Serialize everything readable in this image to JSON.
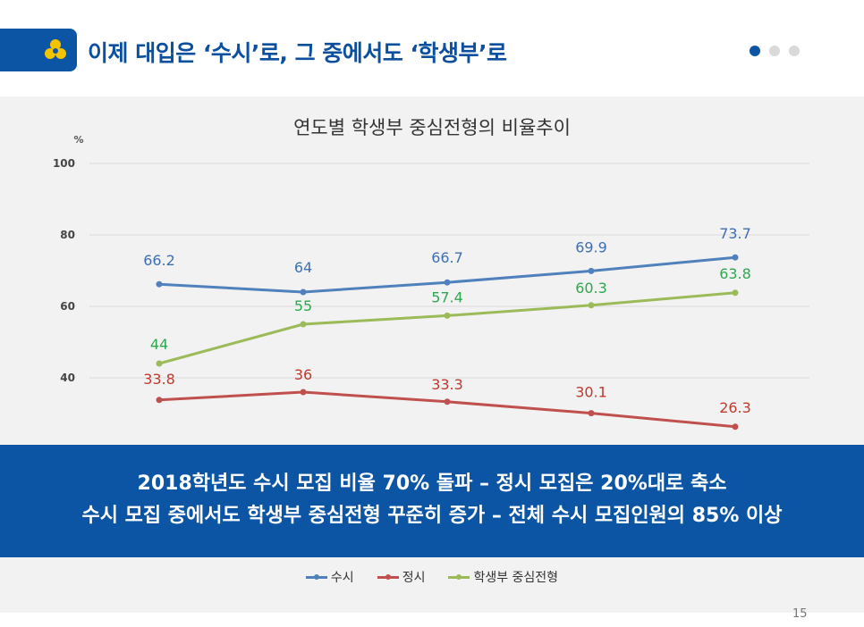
{
  "header": {
    "title": "이제 대입은 ‘수시’로, 그 중에서도 ‘학생부’로",
    "logo_icon": "yellow-trefoil-logo",
    "pagination_dots": [
      true,
      false,
      false
    ]
  },
  "chart_data": {
    "type": "line",
    "title": "연도별 학생부 중심전형의 비율추이",
    "ylabel": "%",
    "yticks": [
      40,
      60,
      80,
      100
    ],
    "ylim": [
      25,
      100
    ],
    "categories": [
      "",
      "",
      "",
      "",
      ""
    ],
    "grid": true,
    "legend_position": "bottom",
    "series": [
      {
        "name": "수시",
        "color": "#4f81bd",
        "label_color": "#3d6fb3",
        "values": [
          66.2,
          64,
          66.7,
          69.9,
          73.7
        ],
        "labels": [
          "66.2",
          "64",
          "66.7",
          "69.9",
          "73.7"
        ]
      },
      {
        "name": "정시",
        "color": "#c0504d",
        "label_color": "#c0392b",
        "values": [
          33.8,
          36,
          33.3,
          30.1,
          26.3
        ],
        "labels": [
          "33.8",
          "36",
          "33.3",
          "30.1",
          "26.3"
        ]
      },
      {
        "name": "학생부 중심전형",
        "color": "#9bbb59",
        "label_color": "#2ea84f",
        "values": [
          44,
          55,
          57.4,
          60.3,
          63.8
        ],
        "labels": [
          "44",
          "55",
          "57.4",
          "60.3",
          "63.8"
        ]
      }
    ]
  },
  "banner": {
    "line1": "2018학년도 수시 모집 비율 70% 돌파 – 정시 모집은 20%대로 축소",
    "line2": "수시 모집 중에서도 학생부 중심전형 꾸준히 증가 – 전체 수시 모집인원의 85% 이상"
  },
  "page_number": "15"
}
